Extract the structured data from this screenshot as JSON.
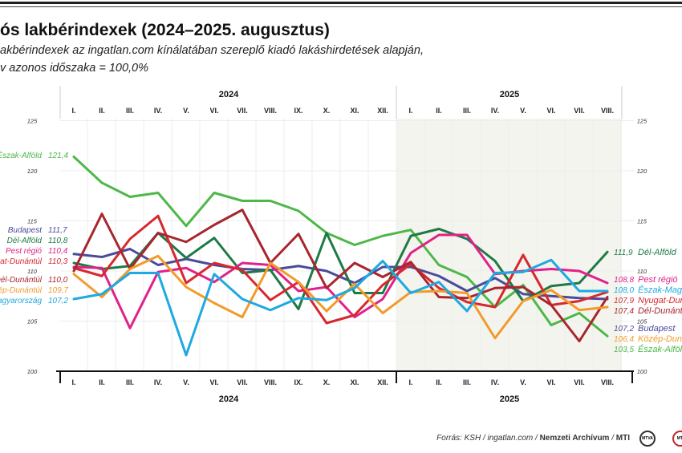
{
  "title": "ós lakbérindexek (2024–2025. augusztus)",
  "subtitle_lines": [
    "akbérindexek az ingatlan.com kínálatában szereplő kiadó lakáshirdetések alapján,",
    "v azonos időszaka = 100,0%"
  ],
  "footer": {
    "source_prefix": "Forrás: KSH / ingatlan.com / ",
    "source_bold": "Nemzeti Archívum",
    "source_sep": " / ",
    "source_mti": "MTI",
    "logo_1": "MTVA",
    "logo_2": "MTI"
  },
  "chart_data": {
    "type": "line",
    "years": [
      "2024",
      "2025"
    ],
    "categories": [
      "I.",
      "II.",
      "III.",
      "IV.",
      "V.",
      "VI.",
      "VII.",
      "VIII.",
      "IX.",
      "X.",
      "XI.",
      "XII.",
      "I.",
      "II.",
      "III.",
      "IV.",
      "V.",
      "VI.",
      "VII.",
      "VIII."
    ],
    "category_years": [
      "2024",
      "2024",
      "2024",
      "2024",
      "2024",
      "2024",
      "2024",
      "2024",
      "2024",
      "2024",
      "2024",
      "2024",
      "2025",
      "2025",
      "2025",
      "2025",
      "2025",
      "2025",
      "2025",
      "2025"
    ],
    "ylim": [
      100,
      125
    ],
    "yticks": [
      "100",
      "105",
      "110",
      "115",
      "120",
      "125"
    ],
    "grid": true,
    "shaded_period": "2025",
    "series": [
      {
        "name": "Észak-Alföld",
        "color": "#4cb848",
        "start_label": "121,4",
        "end_label": "103,5",
        "values": [
          121.4,
          118.8,
          117.4,
          117.8,
          114.5,
          117.8,
          117.0,
          117.0,
          116.0,
          113.8,
          112.6,
          113.5,
          114.1,
          110.6,
          109.4,
          106.4,
          108.6,
          104.6,
          105.8,
          103.5
        ]
      },
      {
        "name": "Budapest",
        "color": "#4a4a9c",
        "start_label": "111,7",
        "end_label": "107,2",
        "values": [
          111.7,
          111.4,
          112.2,
          110.6,
          111.2,
          110.6,
          110.2,
          110.1,
          110.5,
          110.0,
          108.8,
          110.4,
          110.4,
          109.5,
          108.0,
          109.3,
          107.7,
          107.5,
          107.3,
          107.2
        ]
      },
      {
        "name": "Dél-Alföld",
        "color": "#1e7a45",
        "start_label": "110,8",
        "end_label": "111,9",
        "values": [
          110.8,
          110.2,
          110.5,
          113.8,
          111.3,
          113.3,
          109.8,
          110.1,
          106.2,
          113.8,
          107.8,
          107.8,
          113.5,
          114.2,
          113.2,
          111.0,
          107.0,
          108.5,
          108.8,
          111.9
        ]
      },
      {
        "name": "Pest régió",
        "color": "#e0218a",
        "start_label": "110,4",
        "end_label": "108,8",
        "values": [
          110.4,
          110.3,
          104.3,
          109.9,
          110.3,
          108.9,
          110.8,
          110.6,
          108.0,
          108.4,
          105.4,
          107.2,
          111.8,
          113.6,
          113.6,
          109.7,
          110.0,
          110.2,
          110.0,
          108.8
        ]
      },
      {
        "name": "Nyugat-Dunántúl",
        "color": "#d7282f",
        "start_label": "110,3",
        "end_label": "107,9",
        "values": [
          110.3,
          109.5,
          113.2,
          115.5,
          108.8,
          110.8,
          110.1,
          107.1,
          108.9,
          104.8,
          105.6,
          108.6,
          110.7,
          108.3,
          106.9,
          106.4,
          111.6,
          106.6,
          107.0,
          107.9
        ]
      },
      {
        "name": "Dél-Dunántúl",
        "color": "#a8262e",
        "start_label": "110,0",
        "end_label": "107,4",
        "values": [
          110.0,
          115.7,
          110.2,
          113.8,
          112.9,
          114.6,
          116.1,
          110.8,
          113.7,
          108.3,
          110.8,
          109.4,
          110.9,
          107.4,
          107.3,
          108.3,
          108.4,
          106.6,
          103.0,
          107.4
        ]
      },
      {
        "name": "Közép-Dunántúl",
        "color": "#f29b2b",
        "start_label": "109,7",
        "end_label": "106,4",
        "values": [
          109.7,
          107.4,
          110.2,
          111.5,
          108.4,
          106.8,
          105.4,
          110.8,
          108.9,
          106.0,
          108.7,
          105.8,
          107.9,
          108.0,
          107.8,
          103.3,
          107.0,
          108.1,
          106.1,
          106.4
        ]
      },
      {
        "name": "Észak-Magyarország",
        "color": "#1ea9e0",
        "start_label": "107,2",
        "end_label": "108,0",
        "values": [
          107.2,
          107.7,
          109.8,
          109.8,
          101.6,
          109.7,
          107.2,
          106.1,
          107.3,
          107.1,
          108.3,
          111.0,
          107.8,
          108.9,
          106.0,
          109.8,
          109.9,
          111.1,
          108.0,
          108.0
        ]
      }
    ]
  }
}
